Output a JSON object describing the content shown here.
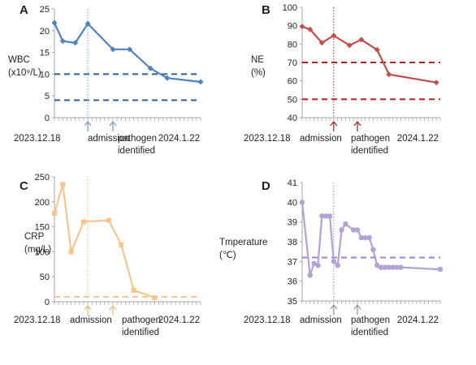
{
  "chart_data": [
    {
      "panel": "A",
      "type": "line",
      "ylabel_lines": [
        "WBC",
        "(x10⁹/L)"
      ],
      "ylim": [
        0,
        25
      ],
      "yticks": [
        0,
        5,
        10,
        15,
        20,
        25
      ],
      "x": [
        0,
        1,
        2,
        3,
        4,
        5,
        6,
        7,
        8,
        9,
        10,
        11,
        12,
        13,
        14,
        15,
        16,
        17,
        18,
        19,
        20,
        21,
        22,
        23,
        24,
        25,
        26,
        27,
        28,
        29,
        30,
        31,
        32,
        33,
        34,
        35
      ],
      "x_start_label": "2023.12.18",
      "x_end_label": "2024.1.22",
      "series": [
        {
          "x": [
            0,
            2,
            5,
            8,
            14,
            18,
            23,
            27,
            35
          ],
          "values": [
            21.8,
            17.6,
            17.2,
            21.6,
            15.7,
            15.7,
            11.3,
            9.1,
            8.2
          ],
          "color": "#4f81bd",
          "marker": "diamond"
        }
      ],
      "reference_lines": [
        10,
        4
      ],
      "reference_color": "#2e5f9e",
      "admission_x": 8,
      "pathogen_x": 14,
      "event_color": "#7f9fc6",
      "annotations": {
        "admission": "admission",
        "pathogen": [
          "pathogen",
          "identified"
        ]
      }
    },
    {
      "panel": "B",
      "type": "line",
      "ylabel_lines": [
        "NE",
        "(%)"
      ],
      "ylim": [
        40,
        100
      ],
      "yticks": [
        40,
        50,
        60,
        70,
        80,
        90,
        100
      ],
      "x_start_label": "2023.12.18",
      "x_end_label": "2024.1.22",
      "series": [
        {
          "x": [
            0,
            2,
            5,
            8,
            12,
            15,
            19,
            22,
            34
          ],
          "values": [
            89.5,
            88,
            80.7,
            84.6,
            79.3,
            82.4,
            76.9,
            63.5,
            59.1
          ],
          "color": "#c0504d",
          "marker": "diamond"
        }
      ],
      "reference_lines": [
        70,
        50
      ],
      "reference_color": "#b22222",
      "admission_x": 8,
      "pathogen_x": 14,
      "event_color": "#a33030",
      "annotations": {
        "admission": "admission",
        "pathogen": [
          "pathogen",
          "identified"
        ]
      }
    },
    {
      "panel": "C",
      "type": "line",
      "ylabel_lines": [
        "CRP",
        "(mg/L)"
      ],
      "ylim": [
        0,
        250
      ],
      "yticks": [
        0,
        50,
        100,
        150,
        200,
        250
      ],
      "x_start_label": "2023.12.18",
      "x_end_label": "2024.1.22",
      "series": [
        {
          "x": [
            0,
            2,
            4,
            7,
            13,
            16,
            19,
            24
          ],
          "values": [
            177,
            235,
            100,
            160,
            163,
            114,
            23,
            8
          ],
          "color": "#f8c48f",
          "marker": "square"
        }
      ],
      "reference_lines": [
        10
      ],
      "reference_color": "#f8c48f",
      "admission_x": 8,
      "pathogen_x": 14,
      "event_color": "#f0b880",
      "annotations": {
        "admission": "admission",
        "pathogen": [
          "pathogen",
          "identified"
        ]
      }
    },
    {
      "panel": "D",
      "type": "line",
      "ylabel_lines": [
        "Tmperature",
        "(℃)"
      ],
      "ylim": [
        35,
        41
      ],
      "yticks": [
        35,
        36,
        37,
        38,
        39,
        40,
        41
      ],
      "x_start_label": "2023.12.18",
      "x_end_label": "2024.1.22",
      "series": [
        {
          "x": [
            0,
            2,
            3,
            4,
            5,
            6,
            7,
            8,
            9,
            10,
            11,
            13,
            14,
            15,
            16,
            17,
            18,
            19,
            20,
            21,
            22,
            23,
            24,
            25,
            35
          ],
          "values": [
            40,
            36.3,
            36.9,
            36.8,
            39.3,
            39.3,
            39.3,
            37,
            36.8,
            38.6,
            38.9,
            38.6,
            38.6,
            38.2,
            38.2,
            38.2,
            37.6,
            36.8,
            36.7,
            36.7,
            36.7,
            36.7,
            36.7,
            36.7,
            36.6
          ],
          "color": "#b3a2d4",
          "marker": "circle"
        }
      ],
      "reference_lines": [
        37.2
      ],
      "reference_color": "#9b86c9",
      "admission_x": 8,
      "pathogen_x": 14,
      "event_color": "#999999",
      "annotations": {
        "admission": "admission",
        "pathogen": [
          "pathogen",
          "identified"
        ]
      }
    }
  ]
}
